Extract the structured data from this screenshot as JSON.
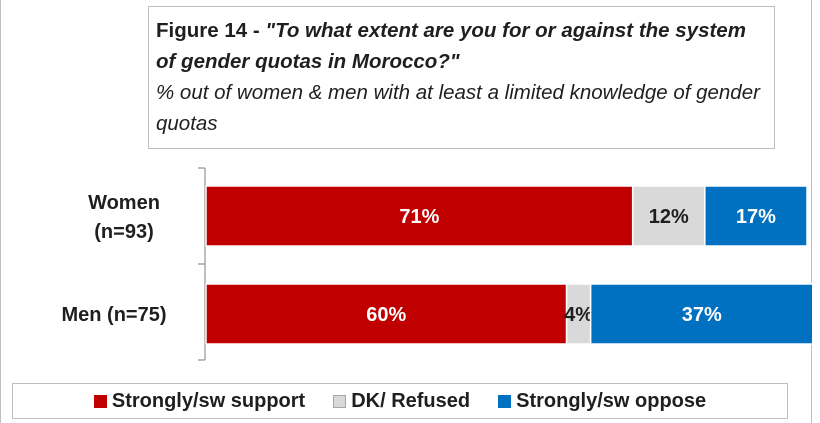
{
  "title_prefix": "Figure 14 - ",
  "title_question": "\"To what extent are you for or against the system of gender quotas in Morocco?\"",
  "subtitle": "% out of women & men with at least a limited knowledge of gender quotas",
  "chart_data": {
    "type": "bar",
    "orientation": "horizontal-stacked-100",
    "categories": [
      "Women (n=93)",
      "Men (n=75)"
    ],
    "series": [
      {
        "name": "Strongly/sw support",
        "values": [
          71,
          60
        ],
        "labels": [
          "71%",
          "60%"
        ],
        "color": "#c00000"
      },
      {
        "name": "DK/ Refused",
        "values": [
          12,
          4
        ],
        "labels": [
          "12%",
          "4%"
        ],
        "color": "#d9d9d9"
      },
      {
        "name": "Strongly/sw oppose",
        "values": [
          17,
          37
        ],
        "labels": [
          "17%",
          "37%"
        ],
        "color": "#0070c0"
      }
    ],
    "xlim": [
      0,
      100
    ],
    "grid": false,
    "legend": "bottom"
  }
}
